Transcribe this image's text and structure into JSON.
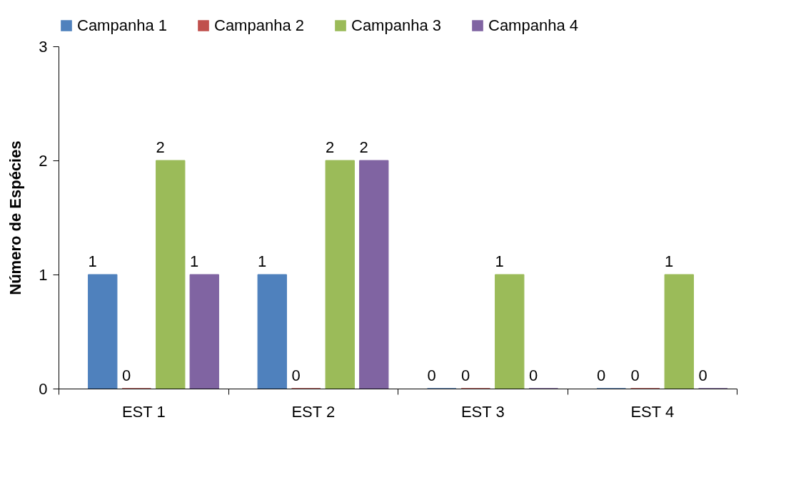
{
  "chart_data": {
    "type": "bar",
    "ylabel": "Número de Espécies",
    "categories": [
      "EST 1",
      "EST 2",
      "EST 3",
      "EST 4"
    ],
    "series": [
      {
        "name": "Campanha 1",
        "color": "#4f81bd",
        "values": [
          1,
          1,
          0,
          0
        ]
      },
      {
        "name": "Campanha 2",
        "color": "#c0504d",
        "values": [
          0,
          0,
          0,
          0
        ]
      },
      {
        "name": "Campanha 3",
        "color": "#9bbb59",
        "values": [
          2,
          2,
          1,
          1
        ]
      },
      {
        "name": "Campanha 4",
        "color": "#8064a2",
        "values": [
          1,
          2,
          0,
          0
        ]
      }
    ],
    "ylim": [
      0,
      3
    ],
    "yticks": [
      0,
      1,
      2,
      3
    ],
    "grid": false,
    "legend": "top",
    "data_labels": true
  }
}
